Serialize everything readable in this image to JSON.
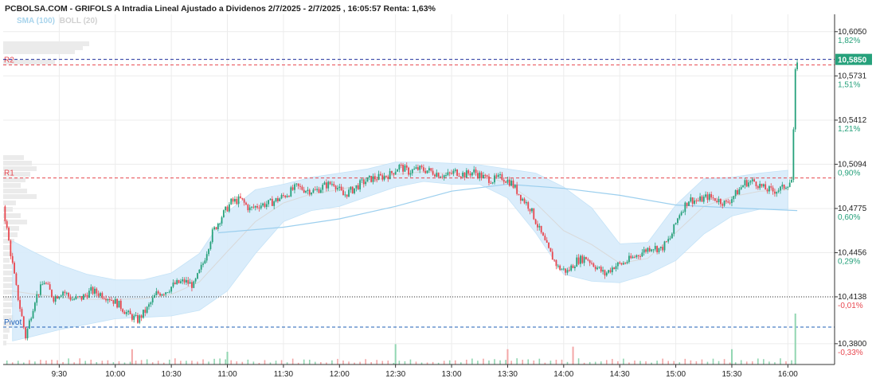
{
  "header": {
    "title": "PCBOLSA.COM - GRIFOLS A Intradia Lineal Ajustado a Dividenos 2/7/2025 - 2/7/2025 , 16:05:57 Renta: 1,63%"
  },
  "indicators": {
    "sma_label": "SMA (100)",
    "boll_label": "BOLL (20)"
  },
  "colors": {
    "up": "#26a17b",
    "down": "#e8474f",
    "sma": "#9ccfee",
    "boll_fill": "#d8ecfb",
    "resistance": "#e8474f",
    "pivot": "#1f5fb5",
    "current_price": "#1f2e9c",
    "last_close_line": "#333333",
    "volume_down": "#f3a7a7",
    "volume_up": "#92d6b2"
  },
  "chart_data": {
    "type": "candlestick",
    "title": "PCBOLSA.COM - GRIFOLS A Intradia Lineal Ajustado a Dividenos 2/7/2025 - 2/7/2025 , 16:05:57 Renta: 1,63%",
    "x_axis": {
      "range": [
        "09:00",
        "16:25"
      ],
      "tick_labels": [
        "9:30",
        "10:00",
        "10:30",
        "11:00",
        "11:30",
        "12:00",
        "12:30",
        "13:00",
        "13:30",
        "14:00",
        "14:30",
        "15:00",
        "15:30",
        "16:00"
      ],
      "tick_minutes": [
        570,
        600,
        630,
        660,
        690,
        720,
        750,
        780,
        810,
        840,
        870,
        900,
        930,
        960
      ]
    },
    "y_axis": {
      "range": [
        10.365,
        10.6175
      ],
      "ticks": [
        {
          "value": 10.605,
          "label": "10,6050",
          "pct": "1,82%"
        },
        {
          "value": 10.5731,
          "label": "10,5731",
          "pct": "1,51%"
        },
        {
          "value": 10.5412,
          "label": "10,5412",
          "pct": "1,21%"
        },
        {
          "value": 10.5094,
          "label": "10,5094",
          "pct": "0,90%"
        },
        {
          "value": 10.4775,
          "label": "10,4775",
          "pct": "0,60%"
        },
        {
          "value": 10.4456,
          "label": "10,4456",
          "pct": "0,29%"
        },
        {
          "value": 10.4138,
          "label": "10,4138",
          "pct": "-0,01%"
        },
        {
          "value": 10.38,
          "label": "10,3800",
          "pct": "-0,33%"
        }
      ]
    },
    "levels": [
      {
        "name": "R2",
        "value": 10.581,
        "style": "resistance"
      },
      {
        "name": "R1",
        "value": 10.4995,
        "style": "resistance"
      },
      {
        "name": "Pivot",
        "value": 10.392,
        "style": "pivot"
      }
    ],
    "previous_close": 10.4138,
    "current_price": {
      "value": 10.585,
      "label": "10,5850"
    },
    "price_path": [
      [
        "09:00",
        10.479
      ],
      [
        "09:07",
        10.42
      ],
      [
        "09:12",
        10.385
      ],
      [
        "09:17",
        10.412
      ],
      [
        "09:22",
        10.425
      ],
      [
        "09:27",
        10.413
      ],
      [
        "09:32",
        10.418
      ],
      [
        "09:37",
        10.412
      ],
      [
        "09:42",
        10.413
      ],
      [
        "09:47",
        10.418
      ],
      [
        "09:52",
        10.416
      ],
      [
        "09:57",
        10.413
      ],
      [
        "10:02",
        10.408
      ],
      [
        "10:07",
        10.401
      ],
      [
        "10:12",
        10.397
      ],
      [
        "10:17",
        10.405
      ],
      [
        "10:22",
        10.416
      ],
      [
        "10:27",
        10.418
      ],
      [
        "10:32",
        10.423
      ],
      [
        "10:37",
        10.425
      ],
      [
        "10:42",
        10.422
      ],
      [
        "10:47",
        10.438
      ],
      [
        "10:52",
        10.46
      ],
      [
        "10:57",
        10.472
      ],
      [
        "11:02",
        10.482
      ],
      [
        "11:07",
        10.484
      ],
      [
        "11:12",
        10.477
      ],
      [
        "11:17",
        10.48
      ],
      [
        "11:22",
        10.481
      ],
      [
        "11:27",
        10.484
      ],
      [
        "11:32",
        10.488
      ],
      [
        "11:37",
        10.493
      ],
      [
        "11:42",
        10.491
      ],
      [
        "11:47",
        10.49
      ],
      [
        "11:52",
        10.494
      ],
      [
        "11:57",
        10.496
      ],
      [
        "12:02",
        10.487
      ],
      [
        "12:07",
        10.491
      ],
      [
        "12:12",
        10.496
      ],
      [
        "12:17",
        10.499
      ],
      [
        "12:22",
        10.5
      ],
      [
        "12:27",
        10.502
      ],
      [
        "12:32",
        10.508
      ],
      [
        "12:37",
        10.504
      ],
      [
        "12:42",
        10.506
      ],
      [
        "12:47",
        10.505
      ],
      [
        "12:52",
        10.503
      ],
      [
        "12:57",
        10.501
      ],
      [
        "13:02",
        10.504
      ],
      [
        "13:07",
        10.502
      ],
      [
        "13:12",
        10.504
      ],
      [
        "13:17",
        10.5
      ],
      [
        "13:22",
        10.498
      ],
      [
        "13:27",
        10.5
      ],
      [
        "13:32",
        10.496
      ],
      [
        "13:37",
        10.486
      ],
      [
        "13:42",
        10.478
      ],
      [
        "13:47",
        10.462
      ],
      [
        "13:52",
        10.447
      ],
      [
        "13:57",
        10.435
      ],
      [
        "14:02",
        10.432
      ],
      [
        "14:07",
        10.44
      ],
      [
        "14:12",
        10.442
      ],
      [
        "14:17",
        10.436
      ],
      [
        "14:22",
        10.43
      ],
      [
        "14:27",
        10.436
      ],
      [
        "14:32",
        10.438
      ],
      [
        "14:37",
        10.442
      ],
      [
        "14:42",
        10.446
      ],
      [
        "14:47",
        10.45
      ],
      [
        "14:52",
        10.448
      ],
      [
        "14:57",
        10.456
      ],
      [
        "15:02",
        10.474
      ],
      [
        "15:07",
        10.484
      ],
      [
        "15:12",
        10.483
      ],
      [
        "15:17",
        10.486
      ],
      [
        "15:22",
        10.484
      ],
      [
        "15:27",
        10.481
      ],
      [
        "15:32",
        10.488
      ],
      [
        "15:37",
        10.496
      ],
      [
        "15:42",
        10.497
      ],
      [
        "15:47",
        10.492
      ],
      [
        "15:52",
        10.49
      ],
      [
        "15:57",
        10.492
      ],
      [
        "16:02",
        10.498
      ],
      [
        "16:03",
        10.532
      ],
      [
        "16:04",
        10.575
      ],
      [
        "16:05",
        10.585
      ]
    ],
    "sma_100": [
      [
        "10:55",
        10.46
      ],
      [
        "11:30",
        10.464
      ],
      [
        "12:00",
        10.47
      ],
      [
        "12:30",
        10.479
      ],
      [
        "13:00",
        10.49
      ],
      [
        "13:30",
        10.495
      ],
      [
        "14:00",
        10.492
      ],
      [
        "14:30",
        10.487
      ],
      [
        "15:00",
        10.48
      ],
      [
        "15:30",
        10.478
      ],
      [
        "16:05",
        10.476
      ]
    ],
    "bollinger_20": [
      [
        "09:05",
        10.454,
        10.382
      ],
      [
        "09:15",
        10.447,
        10.385
      ],
      [
        "09:30",
        10.437,
        10.39
      ],
      [
        "09:45",
        10.43,
        10.394
      ],
      [
        "10:00",
        10.426,
        10.398
      ],
      [
        "10:15",
        10.426,
        10.399
      ],
      [
        "10:30",
        10.431,
        10.4
      ],
      [
        "10:45",
        10.445,
        10.404
      ],
      [
        "11:00",
        10.475,
        10.418
      ],
      [
        "11:15",
        10.491,
        10.445
      ],
      [
        "11:30",
        10.495,
        10.468
      ],
      [
        "11:45",
        10.5,
        10.476
      ],
      [
        "12:00",
        10.503,
        10.479
      ],
      [
        "12:15",
        10.506,
        10.486
      ],
      [
        "12:30",
        10.511,
        10.493
      ],
      [
        "12:45",
        10.511,
        10.497
      ],
      [
        "13:00",
        10.51,
        10.495
      ],
      [
        "13:15",
        10.509,
        10.495
      ],
      [
        "13:30",
        10.506,
        10.485
      ],
      [
        "13:45",
        10.503,
        10.46
      ],
      [
        "14:00",
        10.493,
        10.43
      ],
      [
        "14:15",
        10.478,
        10.425
      ],
      [
        "14:30",
        10.452,
        10.424
      ],
      [
        "14:45",
        10.453,
        10.43
      ],
      [
        "15:00",
        10.48,
        10.44
      ],
      [
        "15:15",
        10.499,
        10.459
      ],
      [
        "15:30",
        10.5,
        10.472
      ],
      [
        "15:45",
        10.503,
        10.477
      ],
      [
        "16:00",
        10.505,
        10.477
      ]
    ],
    "volume_spikes": [
      [
        "10:09",
        "down",
        0.3
      ],
      [
        "11:00",
        "up",
        0.25
      ],
      [
        "12:30",
        "up",
        0.4
      ],
      [
        "13:30",
        "down",
        0.3
      ],
      [
        "14:05",
        "down",
        0.35
      ],
      [
        "15:30",
        "up",
        0.3
      ],
      [
        "16:04",
        "up",
        1.0
      ]
    ]
  }
}
